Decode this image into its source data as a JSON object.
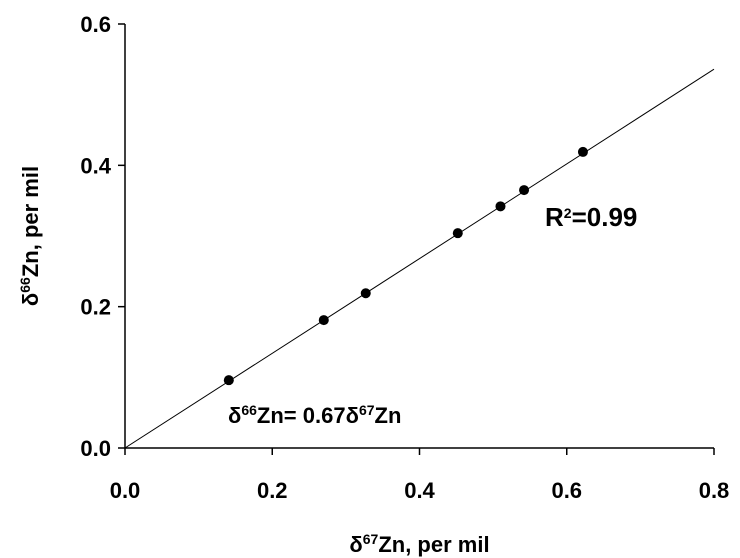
{
  "chart_data": {
    "type": "scatter",
    "x_label_parts": [
      "δ",
      "67",
      "Zn, per mil"
    ],
    "y_label_parts": [
      "δ",
      "66",
      "Zn, per mil"
    ],
    "x": [
      0.141,
      0.27,
      0.327,
      0.452,
      0.51,
      0.542,
      0.622
    ],
    "values": [
      0.096,
      0.181,
      0.219,
      0.304,
      0.342,
      0.365,
      0.419
    ],
    "color": "#000000",
    "xlim": [
      0,
      0.8
    ],
    "xticks": [
      {
        "value": 0,
        "label": "0.0"
      },
      0.2,
      0.4,
      0.6,
      0.8
    ],
    "ylim": [
      0,
      0.6
    ],
    "yticks": [
      {
        "value": 0,
        "label": "0.0"
      },
      0.2,
      0.4,
      0.6
    ],
    "trendline": {
      "slope": 0.67,
      "label_parts": [
        "δ",
        "66",
        "Zn= ",
        "δ",
        "67",
        "Zn"
      ]
    },
    "r2_parts": [
      "R",
      "2",
      "=0.99"
    ]
  }
}
